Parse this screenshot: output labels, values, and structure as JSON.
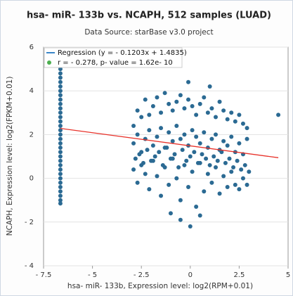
{
  "chart_data": {
    "type": "scatter",
    "title": "hsa- miR- 133b vs. NCAPH, 512 samples (LUAD)",
    "subtitle": "Data Source: starBase v3.0 project",
    "x_label": "hsa- miR- 133b, Expression level: log2(RPM+0.01)",
    "y_label": "NCAPH, Expression level: log2(FPKM+0.01)",
    "xlim": [
      -7.5,
      5
    ],
    "ylim": [
      -4,
      6
    ],
    "xticks": [
      {
        "value": -7.5,
        "label": "- 7.5"
      },
      {
        "value": -5,
        "label": "- 5"
      },
      {
        "value": -2.5,
        "label": "- 2.5"
      },
      0,
      2.5,
      5
    ],
    "yticks": [
      {
        "value": -4,
        "label": "- 4"
      },
      {
        "value": -2,
        "label": "- 2"
      },
      0,
      2,
      4,
      6
    ],
    "grid": true,
    "color": "#2b6a93",
    "regression": {
      "slope": -0.1203,
      "intercept": 1.4835,
      "color": "#e8322a"
    },
    "legend": [
      {
        "label": "Regression (y = - 0.1203x + 1.4835)",
        "color": "#3a86c8"
      },
      {
        "label": "r = - 0.278, p- value = 1.62e- 10",
        "color": "#4caf50"
      }
    ],
    "x": [
      -6.64,
      -6.64,
      -6.64,
      -6.64,
      -6.64,
      -6.64,
      -6.64,
      -6.64,
      -6.64,
      -6.64,
      -6.64,
      -6.64,
      -6.64,
      -6.64,
      -6.64,
      -6.64,
      -6.64,
      -6.64,
      -6.64,
      -6.64,
      -6.64,
      -6.64,
      -6.64,
      -6.64,
      -6.64,
      -6.64,
      -6.64,
      -6.64,
      -6.64,
      -6.64,
      -6.64,
      -6.64,
      -2.9,
      -2.7,
      -2.5,
      -2.3,
      -2.1,
      -1.9,
      -1.7,
      -1.5,
      -1.3,
      -1.1,
      -0.9,
      -0.7,
      -0.5,
      -0.3,
      -0.1,
      0.1,
      0.3,
      0.5,
      0.7,
      0.9,
      1.1,
      1.3,
      1.5,
      1.7,
      1.9,
      2.1,
      2.3,
      2.5,
      2.7,
      2.9,
      -2.9,
      -2.7,
      -2.5,
      -2.3,
      -2.1,
      -1.9,
      -1.7,
      -1.5,
      -1.3,
      -1.1,
      -0.9,
      -0.7,
      -0.5,
      -0.3,
      -0.1,
      0.1,
      0.3,
      0.5,
      0.7,
      0.9,
      1.1,
      1.3,
      1.5,
      1.7,
      1.9,
      2.1,
      2.3,
      2.5,
      2.7,
      2.9,
      -2.9,
      -2.7,
      -2.5,
      -2.3,
      -2.1,
      -1.9,
      -1.7,
      -1.5,
      -1.3,
      -1.1,
      -0.9,
      -0.7,
      -0.5,
      -0.3,
      -0.1,
      0.1,
      0.3,
      0.5,
      0.7,
      0.9,
      1.1,
      1.3,
      1.5,
      1.7,
      1.9,
      2.1,
      2.3,
      2.5,
      2.7,
      2.9,
      -2.8,
      -2.6,
      -2.4,
      -2.2,
      -2.0,
      -1.8,
      -1.6,
      -1.4,
      -1.2,
      -1.0,
      -0.8,
      -0.6,
      -0.4,
      -0.2,
      0.0,
      0.2,
      0.4,
      0.6,
      0.8,
      1.0,
      1.2,
      1.4,
      1.6,
      1.8,
      2.0,
      2.2,
      2.4,
      2.6,
      2.8,
      3.0,
      -0.5,
      0.0,
      0.5,
      -1.0,
      4.5,
      -0.1,
      1.0
    ],
    "y": [
      5.0,
      4.8,
      4.6,
      4.4,
      4.2,
      4.0,
      3.8,
      3.6,
      3.4,
      3.2,
      3.0,
      2.8,
      2.6,
      2.4,
      2.2,
      2.0,
      1.8,
      1.6,
      1.4,
      1.2,
      1.0,
      0.8,
      0.6,
      0.4,
      0.2,
      0.0,
      -0.2,
      -0.4,
      -0.6,
      -0.8,
      -1.0,
      -1.15,
      2.4,
      3.1,
      2.8,
      3.6,
      2.9,
      3.3,
      3.7,
      3.0,
      3.9,
      3.4,
      3.1,
      3.5,
      3.8,
      3.2,
      3.6,
      3.3,
      2.9,
      3.4,
      3.7,
      3.0,
      3.2,
      2.8,
      3.5,
      3.1,
      2.7,
      3.0,
      2.6,
      2.9,
      2.5,
      2.3,
      1.6,
      2.0,
      1.2,
      1.8,
      2.2,
      1.5,
      1.9,
      2.3,
      1.4,
      2.1,
      1.7,
      2.4,
      1.8,
      2.0,
      1.5,
      2.2,
      1.9,
      1.6,
      2.1,
      1.4,
      1.8,
      2.0,
      1.3,
      1.7,
      1.5,
      1.9,
      1.2,
      1.6,
      1.1,
      1.8,
      0.4,
      -0.2,
      0.6,
      0.2,
      -0.5,
      0.8,
      0.1,
      -0.8,
      0.5,
      -0.3,
      0.9,
      0.0,
      -1.0,
      0.6,
      -0.4,
      0.3,
      -1.3,
      0.7,
      -0.6,
      0.2,
      -0.2,
      0.5,
      -0.7,
      0.1,
      -0.4,
      0.3,
      -0.3,
      -0.5,
      0.0,
      -0.3,
      0.9,
      1.1,
      0.7,
      1.3,
      0.8,
      1.0,
      1.2,
      0.6,
      1.4,
      0.9,
      1.1,
      0.5,
      1.3,
      0.8,
      1.0,
      1.2,
      0.7,
      1.1,
      0.9,
      0.6,
      1.0,
      0.8,
      1.2,
      0.7,
      0.9,
      0.5,
      0.8,
      0.4,
      0.6,
      0.3,
      -1.9,
      -2.2,
      -1.7,
      -1.6,
      2.9,
      4.4,
      4.2
    ]
  }
}
